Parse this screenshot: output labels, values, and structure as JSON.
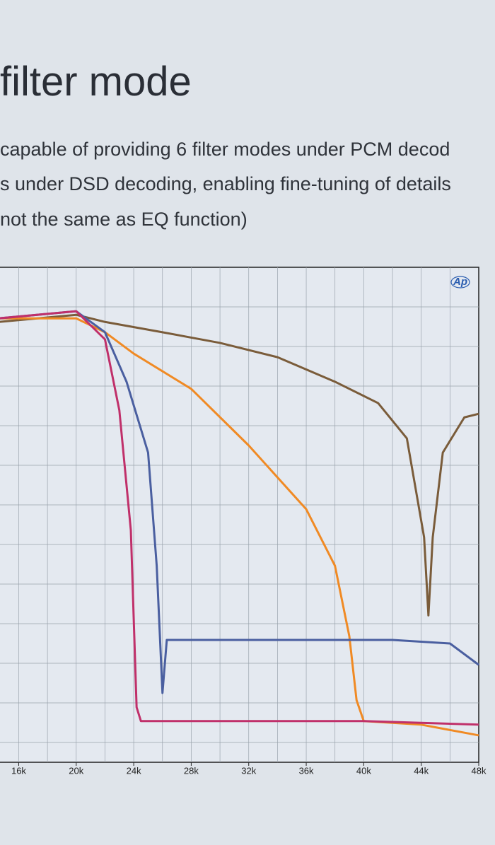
{
  "heading": "filter mode",
  "paragraph": [
    "capable of providing 6 filter modes under PCM decod",
    "s under DSD decoding, enabling fine-tuning of details",
    "not the same as EQ function)"
  ],
  "chart_data": {
    "type": "line",
    "logo": "Ap",
    "xlim": [
      14600,
      48000
    ],
    "ylim": [
      -125,
      0
    ],
    "xticks": [
      {
        "value": 16000,
        "label": "16k"
      },
      {
        "value": 20000,
        "label": "20k"
      },
      {
        "value": 24000,
        "label": "24k"
      },
      {
        "value": 28000,
        "label": "28k"
      },
      {
        "value": 32000,
        "label": "32k"
      },
      {
        "value": 36000,
        "label": "36k"
      },
      {
        "value": 40000,
        "label": "40k"
      },
      {
        "value": 44000,
        "label": "44k"
      },
      {
        "value": 48000,
        "label": "48k"
      }
    ],
    "xgrid": [
      16000,
      18000,
      20000,
      22000,
      24000,
      26000,
      28000,
      30000,
      32000,
      34000,
      36000,
      38000,
      40000,
      42000,
      44000,
      46000
    ],
    "ygrid": [
      -10,
      -20,
      -30,
      -40,
      -50,
      -60,
      -70,
      -80,
      -90,
      -100,
      -110,
      -120
    ],
    "grid": true,
    "series": [
      {
        "color": "#7a5c3a",
        "x": [
          14600,
          20000,
          22000,
          26000,
          30000,
          34000,
          38000,
          41000,
          43000,
          44200,
          44500,
          44800,
          45500,
          47000,
          48000
        ],
        "values": [
          -13.8,
          -12,
          -13.8,
          -16.4,
          -19.1,
          -22.7,
          -28.9,
          -34.3,
          -43.2,
          -68.2,
          -87.9,
          -68.2,
          -46.8,
          -37.9,
          -37
        ]
      },
      {
        "color": "#f08a24",
        "x": [
          14600,
          20000,
          22000,
          24000,
          28000,
          32000,
          36000,
          38000,
          39000,
          39500,
          40000,
          44000,
          48000
        ],
        "values": [
          -12.9,
          -12.9,
          -16.4,
          -21.8,
          -30.7,
          -45,
          -61.1,
          -75.4,
          -93.2,
          -109.3,
          -114.6,
          -115.5,
          -118.2
        ]
      },
      {
        "color": "#4a5fa0",
        "x": [
          14600,
          20000,
          22000,
          23500,
          25000,
          25600,
          26000,
          26300,
          30000,
          34000,
          38000,
          42000,
          46000,
          48000
        ],
        "values": [
          -12.9,
          -11.1,
          -16.4,
          -28.9,
          -46.8,
          -75.4,
          -107.5,
          -94.1,
          -94.1,
          -94.1,
          -94.1,
          -94.1,
          -95,
          -100.4
        ]
      },
      {
        "color": "#c0306a",
        "x": [
          14600,
          20000,
          22000,
          23000,
          23800,
          24200,
          24500,
          30000,
          40000,
          48000
        ],
        "values": [
          -12.9,
          -11.1,
          -18.2,
          -36.1,
          -66.4,
          -111.1,
          -114.6,
          -114.6,
          -114.6,
          -115.5
        ]
      }
    ]
  }
}
